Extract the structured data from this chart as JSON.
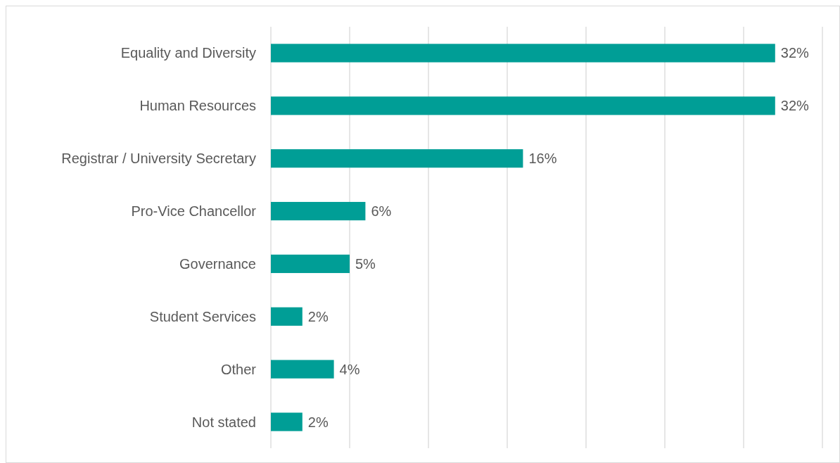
{
  "chart_data": {
    "type": "bar",
    "orientation": "horizontal",
    "categories": [
      "Equality and Diversity",
      "Human Resources",
      "Registrar / University Secretary",
      "Pro-Vice Chancellor",
      "Governance",
      "Student Services",
      "Other",
      "Not stated"
    ],
    "values": [
      32,
      32,
      16,
      6,
      5,
      2,
      4,
      2
    ],
    "value_labels": [
      "32%",
      "32%",
      "16%",
      "6%",
      "5%",
      "2%",
      "4%",
      "2%"
    ],
    "color": "#009e96",
    "xlim": [
      0,
      35
    ],
    "xticks": [
      {
        "value": 0,
        "label": null
      },
      {
        "value": 5,
        "label": null
      },
      {
        "value": 10,
        "label": null
      },
      {
        "value": 15,
        "label": null
      },
      {
        "value": 20,
        "label": null
      },
      {
        "value": 25,
        "label": null
      },
      {
        "value": 30,
        "label": null
      },
      {
        "value": 35,
        "label": null
      }
    ],
    "grid": "x",
    "tick_labels": "y"
  }
}
